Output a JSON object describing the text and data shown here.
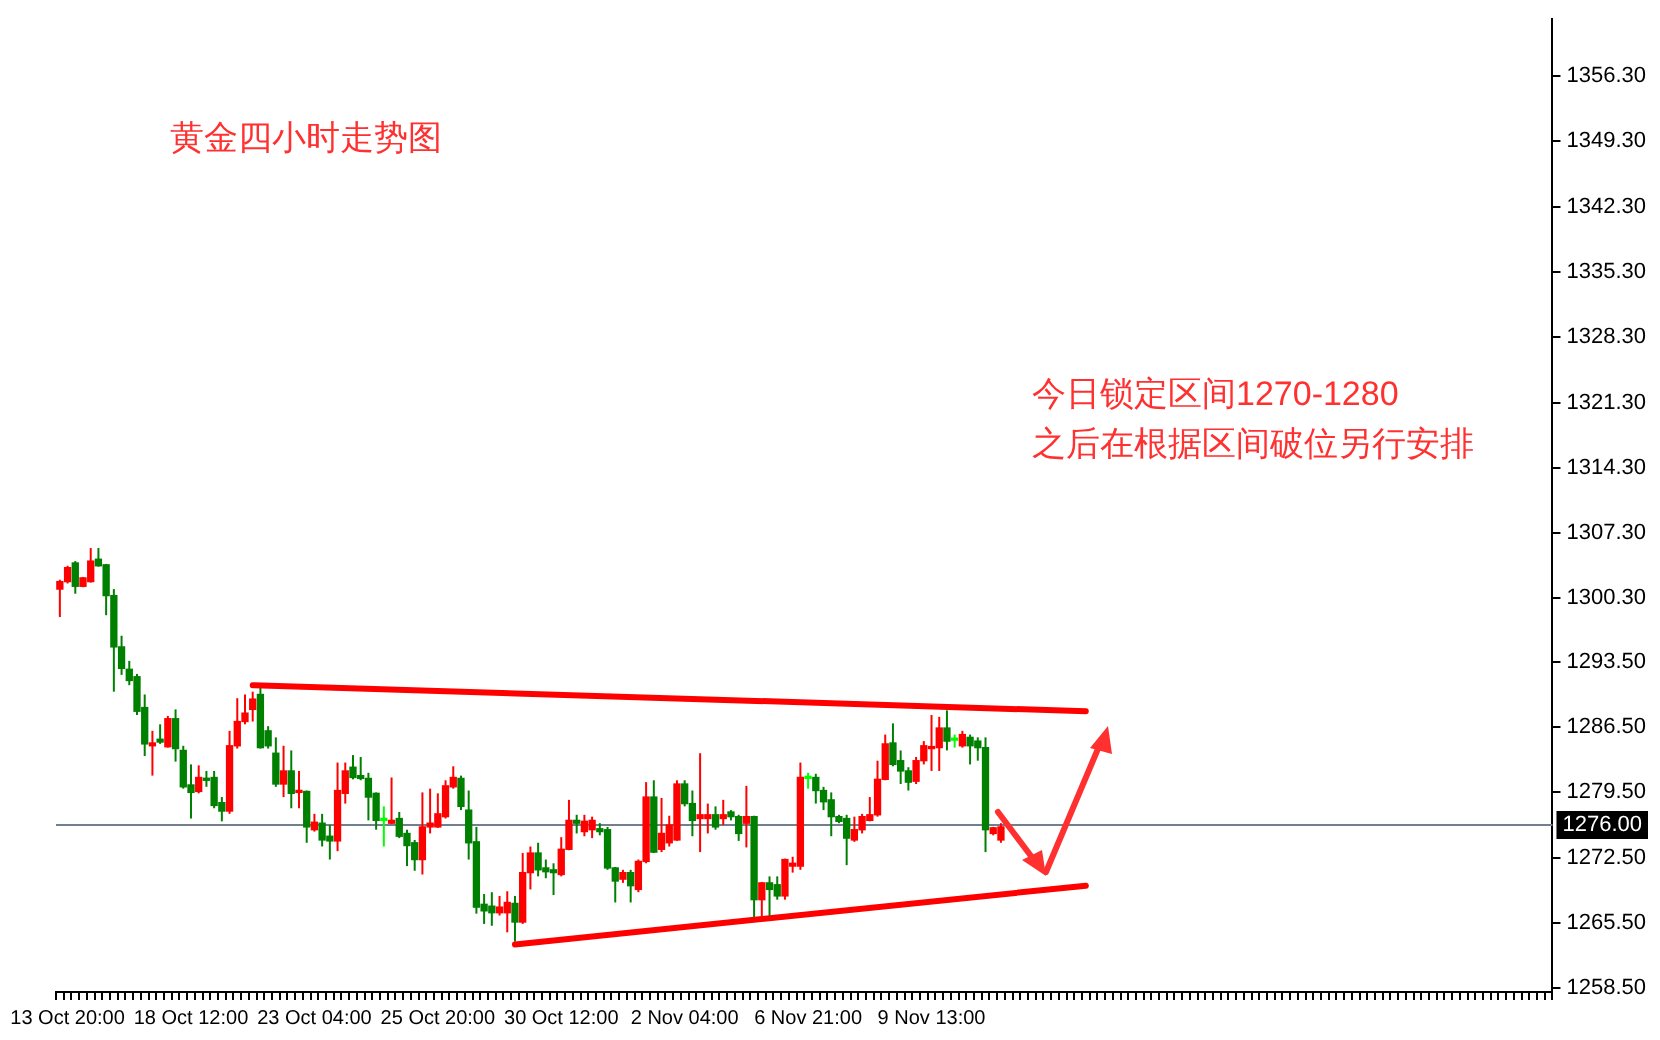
{
  "chart_data": {
    "type": "candlestick",
    "title": "黄金四小时走势图",
    "annotations": [
      "今日锁定区间1270-1280",
      "之后在根据区间破位另行安排"
    ],
    "categories": [
      null,
      "13 Oct 20:00",
      null,
      null,
      null,
      null,
      null,
      null,
      null,
      null,
      null,
      null,
      null,
      null,
      null,
      null,
      null,
      "18 Oct 12:00",
      null,
      null,
      null,
      null,
      null,
      null,
      null,
      null,
      null,
      null,
      null,
      null,
      null,
      null,
      null,
      "23 Oct 04:00",
      null,
      null,
      null,
      null,
      null,
      null,
      null,
      null,
      null,
      null,
      null,
      null,
      null,
      null,
      null,
      "25 Oct 20:00",
      null,
      null,
      null,
      null,
      null,
      null,
      null,
      null,
      null,
      null,
      null,
      null,
      null,
      null,
      null,
      "30 Oct 12:00",
      null,
      null,
      null,
      null,
      null,
      null,
      null,
      null,
      null,
      null,
      null,
      null,
      null,
      null,
      null,
      "2 Nov 04:00",
      null,
      null,
      null,
      null,
      null,
      null,
      null,
      null,
      null,
      null,
      null,
      null,
      null,
      null,
      null,
      "6 Nov 21:00",
      null,
      null,
      null,
      null,
      null,
      null,
      null,
      null,
      null,
      null,
      null,
      null,
      null,
      null,
      null,
      "9 Nov 13:00",
      null,
      null,
      null,
      null,
      null,
      null,
      null,
      null,
      null,
      null,
      null,
      null,
      null,
      null,
      null,
      null,
      null,
      null,
      null,
      null,
      null,
      null,
      null,
      null,
      null,
      null,
      null,
      null,
      null,
      null,
      null,
      null,
      null,
      null,
      null,
      null,
      null,
      null,
      null,
      null,
      null,
      null,
      null,
      null,
      null,
      null,
      null,
      null,
      null,
      null,
      null,
      null,
      null,
      null,
      null,
      null,
      null,
      null,
      null,
      null,
      null,
      null,
      null,
      null,
      null,
      null,
      null,
      null,
      null,
      null,
      null,
      null,
      null,
      null,
      null,
      null,
      null,
      null,
      null,
      null
    ],
    "ohlc": [
      [
        1301.3,
        1302.3,
        1298.3,
        1302.1
      ],
      [
        1302.1,
        1303.8,
        1301.9,
        1303.6
      ],
      [
        1304.1,
        1304.3,
        1300.8,
        1301.6
      ],
      [
        1301.6,
        1302.6,
        1301.5,
        1302.5
      ],
      [
        1302.1,
        1305.7,
        1302.0,
        1304.3
      ],
      [
        1304.5,
        1305.7,
        1303.7,
        1303.8
      ],
      [
        1303.9,
        1304.0,
        1298.5,
        1300.6
      ],
      [
        1300.6,
        1301.3,
        1290.3,
        1295.1
      ],
      [
        1295.1,
        1296.3,
        1292.1,
        1292.8
      ],
      [
        1292.7,
        1293.6,
        1291.0,
        1291.5
      ],
      [
        1291.9,
        1292.2,
        1287.8,
        1288.2
      ],
      [
        1288.6,
        1290.0,
        1283.4,
        1284.7
      ],
      [
        1284.5,
        1286.1,
        1281.3,
        1284.8
      ],
      [
        1285.2,
        1286.8,
        1284.7,
        1284.9
      ],
      [
        1284.4,
        1287.7,
        1284.3,
        1287.4
      ],
      [
        1287.4,
        1288.4,
        1282.8,
        1284.2
      ],
      [
        1284.0,
        1284.5,
        1279.9,
        1280.1
      ],
      [
        1280.3,
        1282.5,
        1276.7,
        1279.5
      ],
      [
        1279.6,
        1282.4,
        1279.4,
        1281.1
      ],
      [
        1281.0,
        1281.8,
        1280.1,
        1280.8
      ],
      [
        1281.1,
        1281.8,
        1277.8,
        1278.1
      ],
      [
        1278.4,
        1279.0,
        1276.4,
        1277.5
      ],
      [
        1277.5,
        1286.1,
        1277.2,
        1284.5
      ],
      [
        1284.5,
        1289.6,
        1284.2,
        1287.1
      ],
      [
        1287.1,
        1290.0,
        1286.8,
        1288.0
      ],
      [
        1288.4,
        1290.3,
        1287.1,
        1289.5
      ],
      [
        1290.0,
        1290.8,
        1284.2,
        1284.3
      ],
      [
        1286.1,
        1286.6,
        1284.2,
        1284.5
      ],
      [
        1283.7,
        1285.4,
        1280.1,
        1280.4
      ],
      [
        1280.4,
        1284.5,
        1279.0,
        1281.8
      ],
      [
        1281.8,
        1284.0,
        1277.8,
        1279.4
      ],
      [
        1279.5,
        1281.8,
        1277.8,
        1279.7
      ],
      [
        1279.6,
        1279.7,
        1274.1,
        1275.8
      ],
      [
        1275.5,
        1277.2,
        1275.3,
        1276.3
      ],
      [
        1276.2,
        1277.2,
        1273.7,
        1274.4
      ],
      [
        1274.8,
        1276.0,
        1272.3,
        1274.3
      ],
      [
        1274.3,
        1282.7,
        1273.2,
        1279.7
      ],
      [
        1279.4,
        1282.7,
        1278.3,
        1281.8
      ],
      [
        1282.2,
        1283.5,
        1280.9,
        1281.1
      ],
      [
        1281.3,
        1283.3,
        1280.8,
        1281.0
      ],
      [
        1281.0,
        1281.6,
        1276.5,
        1279.0
      ],
      [
        1279.4,
        1279.5,
        1275.5,
        1276.5
      ],
      [
        1276.5,
        1278.0,
        1273.7,
        1276.5
      ],
      [
        1276.2,
        1281.1,
        1276.1,
        1276.5
      ],
      [
        1276.7,
        1277.4,
        1274.6,
        1274.8
      ],
      [
        1275.1,
        1275.5,
        1271.6,
        1273.8
      ],
      [
        1274.1,
        1274.4,
        1271.1,
        1272.3
      ],
      [
        1272.3,
        1279.5,
        1270.7,
        1275.8
      ],
      [
        1275.8,
        1279.9,
        1275.1,
        1276.2
      ],
      [
        1275.8,
        1279.4,
        1275.7,
        1277.2
      ],
      [
        1276.9,
        1280.8,
        1276.7,
        1280.2
      ],
      [
        1280.1,
        1282.3,
        1279.9,
        1281.1
      ],
      [
        1281.0,
        1281.3,
        1277.6,
        1278.0
      ],
      [
        1277.6,
        1279.7,
        1272.3,
        1274.1
      ],
      [
        1274.2,
        1275.8,
        1266.5,
        1267.2
      ],
      [
        1267.5,
        1268.6,
        1265.4,
        1266.8
      ],
      [
        1267.3,
        1268.8,
        1265.2,
        1266.6
      ],
      [
        1266.6,
        1268.4,
        1266.3,
        1267.2
      ],
      [
        1266.6,
        1268.9,
        1264.5,
        1267.7
      ],
      [
        1267.6,
        1268.4,
        1263.5,
        1265.6
      ],
      [
        1265.6,
        1273.0,
        1265.4,
        1270.9
      ],
      [
        1270.9,
        1273.7,
        1269.1,
        1273.0
      ],
      [
        1273.0,
        1274.1,
        1270.5,
        1271.2
      ],
      [
        1271.4,
        1272.3,
        1270.3,
        1271.0
      ],
      [
        1271.2,
        1271.9,
        1268.5,
        1270.9
      ],
      [
        1270.7,
        1274.7,
        1270.5,
        1273.4
      ],
      [
        1273.4,
        1278.7,
        1273.3,
        1276.5
      ],
      [
        1276.5,
        1277.1,
        1275.1,
        1276.2
      ],
      [
        1275.3,
        1277.1,
        1274.8,
        1276.4
      ],
      [
        1275.5,
        1276.9,
        1274.6,
        1276.5
      ],
      [
        1275.6,
        1276.2,
        1274.9,
        1275.3
      ],
      [
        1275.5,
        1275.8,
        1271.2,
        1271.4
      ],
      [
        1271.4,
        1271.5,
        1267.7,
        1270.0
      ],
      [
        1270.2,
        1271.2,
        1269.8,
        1270.9
      ],
      [
        1270.9,
        1271.2,
        1267.7,
        1269.5
      ],
      [
        1269.1,
        1272.3,
        1268.8,
        1272.1
      ],
      [
        1272.1,
        1280.6,
        1271.9,
        1279.0
      ],
      [
        1279.0,
        1280.8,
        1273.0,
        1273.1
      ],
      [
        1273.4,
        1278.9,
        1273.1,
        1275.1
      ],
      [
        1274.1,
        1277.0,
        1273.7,
        1276.0
      ],
      [
        1274.4,
        1280.8,
        1274.3,
        1280.4
      ],
      [
        1280.4,
        1280.8,
        1278.0,
        1278.3
      ],
      [
        1278.3,
        1279.7,
        1274.8,
        1276.5
      ],
      [
        1276.7,
        1283.7,
        1273.1,
        1277.1
      ],
      [
        1276.7,
        1278.3,
        1275.1,
        1277.1
      ],
      [
        1277.1,
        1278.0,
        1275.5,
        1275.8
      ],
      [
        1276.7,
        1278.7,
        1276.0,
        1277.1
      ],
      [
        1277.4,
        1277.6,
        1276.5,
        1276.9
      ],
      [
        1276.9,
        1277.1,
        1274.3,
        1275.1
      ],
      [
        1276.2,
        1280.2,
        1273.6,
        1276.9
      ],
      [
        1276.9,
        1277.0,
        1265.6,
        1268.0
      ],
      [
        1268.0,
        1269.9,
        1265.9,
        1269.8
      ],
      [
        1269.8,
        1270.5,
        1265.9,
        1269.1
      ],
      [
        1269.6,
        1270.5,
        1268.0,
        1268.4
      ],
      [
        1268.4,
        1272.4,
        1268.0,
        1272.3
      ],
      [
        1271.6,
        1272.6,
        1270.9,
        1271.9
      ],
      [
        1271.6,
        1282.7,
        1271.2,
        1281.1
      ],
      [
        1281.0,
        1281.6,
        1279.9,
        1281.0
      ],
      [
        1281.1,
        1281.5,
        1278.3,
        1279.7
      ],
      [
        1279.7,
        1280.1,
        1277.6,
        1278.5
      ],
      [
        1278.7,
        1279.5,
        1274.8,
        1276.9
      ],
      [
        1276.9,
        1277.1,
        1276.2,
        1276.4
      ],
      [
        1276.7,
        1277.1,
        1271.7,
        1274.6
      ],
      [
        1274.4,
        1276.9,
        1274.2,
        1275.5
      ],
      [
        1275.5,
        1277.2,
        1275.1,
        1276.9
      ],
      [
        1276.5,
        1279.0,
        1276.4,
        1277.1
      ],
      [
        1277.1,
        1282.9,
        1276.9,
        1280.9
      ],
      [
        1280.9,
        1285.7,
        1280.8,
        1284.7
      ],
      [
        1284.8,
        1286.9,
        1282.3,
        1282.5
      ],
      [
        1282.9,
        1284.0,
        1280.4,
        1281.8
      ],
      [
        1281.8,
        1282.2,
        1279.7,
        1280.6
      ],
      [
        1280.7,
        1283.3,
        1280.4,
        1282.9
      ],
      [
        1282.9,
        1285.0,
        1282.5,
        1284.5
      ],
      [
        1284.2,
        1287.8,
        1281.8,
        1284.3
      ],
      [
        1284.3,
        1287.6,
        1281.8,
        1286.4
      ],
      [
        1286.4,
        1288.3,
        1284.0,
        1285.0
      ],
      [
        1285.1,
        1285.7,
        1284.3,
        1285.1
      ],
      [
        1284.5,
        1286.1,
        1284.3,
        1285.7
      ],
      [
        1285.4,
        1285.7,
        1282.5,
        1284.5
      ],
      [
        1285.0,
        1285.4,
        1282.9,
        1284.3
      ],
      [
        1284.3,
        1285.4,
        1273.1,
        1275.5
      ],
      [
        1275.1,
        1275.8,
        1274.9,
        1275.7
      ],
      [
        1274.4,
        1276.2,
        1274.1,
        1275.8
      ],
      null,
      null,
      null,
      null,
      null,
      null,
      null,
      null,
      null,
      null,
      null,
      null,
      null,
      null,
      null,
      null,
      null,
      null,
      null,
      null,
      null,
      null,
      null,
      null,
      null,
      null,
      null,
      null,
      null,
      null,
      null,
      null,
      null,
      null,
      null,
      null,
      null,
      null,
      null,
      null,
      null,
      null,
      null,
      null,
      null,
      null,
      null,
      null,
      null,
      null,
      null,
      null,
      null,
      null,
      null,
      null,
      null,
      null,
      null,
      null,
      null,
      null,
      null,
      null,
      null,
      null,
      null,
      null,
      null,
      null,
      null
    ],
    "colors": [
      "#ff0000",
      "#ff0000",
      "#008000",
      "#ff0000",
      "#ff0000",
      "#008000",
      "#008000",
      "#008000",
      "#008000",
      "#008000",
      "#008000",
      "#008000",
      "#ff0000",
      "#008000",
      "#ff0000",
      "#008000",
      "#008000",
      "#008000",
      "#ff0000",
      "#008000",
      "#008000",
      "#008000",
      "#ff0000",
      "#ff0000",
      "#ff0000",
      "#ff0000",
      "#008000",
      "#008000",
      "#008000",
      "#ff0000",
      "#008000",
      "#ff0000",
      "#008000",
      "#ff0000",
      "#008000",
      "#008000",
      "#ff0000",
      "#ff0000",
      "#008000",
      "#008000",
      "#008000",
      "#008000",
      "#00ff00",
      "#ff0000",
      "#008000",
      "#008000",
      "#008000",
      "#ff0000",
      "#ff0000",
      "#ff0000",
      "#ff0000",
      "#ff0000",
      "#008000",
      "#008000",
      "#008000",
      "#008000",
      "#008000",
      "#ff0000",
      "#ff0000",
      "#008000",
      "#ff0000",
      "#ff0000",
      "#008000",
      "#008000",
      "#008000",
      "#ff0000",
      "#ff0000",
      "#008000",
      "#ff0000",
      "#ff0000",
      "#008000",
      "#008000",
      "#008000",
      "#ff0000",
      "#008000",
      "#ff0000",
      "#ff0000",
      "#008000",
      "#ff0000",
      "#ff0000",
      "#ff0000",
      "#008000",
      "#008000",
      "#ff0000",
      "#ff0000",
      "#008000",
      "#ff0000",
      "#008000",
      "#008000",
      "#ff0000",
      "#008000",
      "#ff0000",
      "#008000",
      "#008000",
      "#ff0000",
      "#ff0000",
      "#ff0000",
      "#00ff00",
      "#008000",
      "#008000",
      "#008000",
      "#008000",
      "#008000",
      "#ff0000",
      "#ff0000",
      "#ff0000",
      "#ff0000",
      "#ff0000",
      "#008000",
      "#008000",
      "#008000",
      "#ff0000",
      "#ff0000",
      "#ff0000",
      "#ff0000",
      "#008000",
      "#00ff00",
      "#ff0000",
      "#008000",
      "#008000",
      "#008000",
      "#ff0000",
      "#ff0000",
      null,
      null,
      null,
      null,
      null,
      null,
      null,
      null,
      null,
      null,
      null,
      null,
      null,
      null,
      null,
      null,
      null,
      null,
      null,
      null,
      null,
      null,
      null,
      null,
      null,
      null,
      null,
      null,
      null,
      null,
      null,
      null,
      null,
      null,
      null,
      null,
      null,
      null,
      null,
      null,
      null,
      null,
      null,
      null,
      null,
      null,
      null,
      null,
      null,
      null,
      null,
      null,
      null,
      null,
      null,
      null,
      null,
      null,
      null,
      null,
      null,
      null,
      null,
      null,
      null,
      null,
      null,
      null,
      null,
      null,
      null
    ],
    "series": [
      {
        "type": "line",
        "color": "#ff0000",
        "values": [
          null,
          null,
          null,
          null,
          null,
          null,
          null,
          null,
          null,
          null,
          null,
          null,
          null,
          null,
          null,
          null,
          null,
          null,
          null,
          null,
          null,
          null,
          null,
          null,
          null,
          1291.0,
          null,
          null,
          null,
          null,
          null,
          null,
          null,
          null,
          null,
          null,
          null,
          null,
          null,
          null,
          null,
          null,
          null,
          null,
          null,
          null,
          null,
          null,
          null,
          null,
          null,
          null,
          null,
          null,
          null,
          null,
          null,
          null,
          null,
          null,
          null,
          null,
          null,
          null,
          null,
          null,
          null,
          null,
          null,
          null,
          null,
          null,
          null,
          null,
          null,
          null,
          null,
          null,
          null,
          null,
          null,
          null,
          null,
          null,
          null,
          null,
          null,
          null,
          null,
          null,
          null,
          null,
          null,
          null,
          null,
          null,
          null,
          null,
          null,
          null,
          null,
          null,
          null,
          null,
          null,
          null,
          null,
          null,
          null,
          null,
          null,
          null,
          null,
          null,
          null,
          null,
          null,
          null,
          null,
          null,
          null,
          null,
          null,
          null,
          null,
          null,
          null,
          null,
          null,
          null,
          null,
          null,
          null,
          1288.2,
          null,
          null,
          null,
          null,
          null,
          null,
          null,
          null,
          null,
          null,
          null,
          null,
          null,
          null,
          null,
          null,
          null,
          null,
          null,
          null,
          null,
          null,
          null,
          null,
          null,
          null,
          null,
          null,
          null,
          null,
          null,
          null,
          null,
          null,
          null,
          null,
          null,
          null,
          null,
          null,
          null,
          null,
          null,
          null,
          null,
          null,
          null,
          null,
          null,
          null,
          null,
          null,
          null,
          null,
          null,
          null,
          null,
          null,
          null,
          null
        ]
      },
      {
        "type": "line",
        "color": "#ff0000",
        "values": [
          null,
          null,
          null,
          null,
          null,
          null,
          null,
          null,
          null,
          null,
          null,
          null,
          null,
          null,
          null,
          null,
          null,
          null,
          null,
          null,
          null,
          null,
          null,
          null,
          null,
          null,
          null,
          null,
          null,
          null,
          null,
          null,
          null,
          null,
          null,
          null,
          null,
          null,
          null,
          null,
          null,
          null,
          null,
          null,
          null,
          null,
          null,
          null,
          null,
          null,
          null,
          null,
          null,
          null,
          null,
          null,
          null,
          null,
          null,
          1263.2,
          null,
          null,
          null,
          null,
          null,
          null,
          null,
          null,
          null,
          null,
          null,
          null,
          null,
          null,
          null,
          null,
          null,
          null,
          null,
          null,
          null,
          null,
          null,
          null,
          null,
          null,
          null,
          null,
          null,
          null,
          null,
          null,
          null,
          null,
          null,
          null,
          null,
          null,
          null,
          null,
          null,
          null,
          null,
          null,
          null,
          null,
          null,
          null,
          null,
          null,
          null,
          null,
          null,
          null,
          null,
          null,
          null,
          null,
          null,
          null,
          null,
          null,
          null,
          null,
          null,
          null,
          null,
          null,
          null,
          null,
          null,
          null,
          null,
          1269.5,
          null,
          null,
          null,
          null,
          null,
          null,
          null,
          null,
          null,
          null,
          null,
          null,
          null,
          null,
          null,
          null,
          null,
          null,
          null,
          null,
          null,
          null,
          null,
          null,
          null,
          null,
          null,
          null,
          null,
          null,
          null,
          null,
          null,
          null,
          null,
          null,
          null,
          null,
          null,
          null,
          null,
          null,
          null,
          null,
          null,
          null,
          null,
          null,
          null,
          null,
          null,
          null,
          null,
          null,
          null,
          null,
          null,
          null,
          null,
          null
        ]
      }
    ],
    "ylim": [
      1258.1,
      1362.4
    ],
    "yticks": [
      {
        "value": 1258.5,
        "label": "1258.50"
      },
      {
        "value": 1265.5,
        "label": "1265.50"
      },
      {
        "value": 1272.5,
        "label": "1272.50"
      },
      {
        "value": 1279.5,
        "label": "1279.50"
      },
      {
        "value": 1286.5,
        "label": "1286.50"
      },
      {
        "value": 1293.5,
        "label": "1293.50"
      },
      {
        "value": 1300.3,
        "label": "1300.30"
      },
      {
        "value": 1307.3,
        "label": "1307.30"
      },
      {
        "value": 1314.3,
        "label": "1314.30"
      },
      {
        "value": 1321.3,
        "label": "1321.30"
      },
      {
        "value": 1328.3,
        "label": "1328.30"
      },
      {
        "value": 1335.3,
        "label": "1335.30"
      },
      {
        "value": 1342.3,
        "label": "1342.30"
      },
      {
        "value": 1349.3,
        "label": "1349.30"
      },
      {
        "value": 1356.3,
        "label": "1356.30"
      }
    ],
    "ref_lines": [
      {
        "axis": "y",
        "value": 1276,
        "label": "1276.00",
        "color": "#708090"
      }
    ],
    "grid": false,
    "legend": false
  }
}
